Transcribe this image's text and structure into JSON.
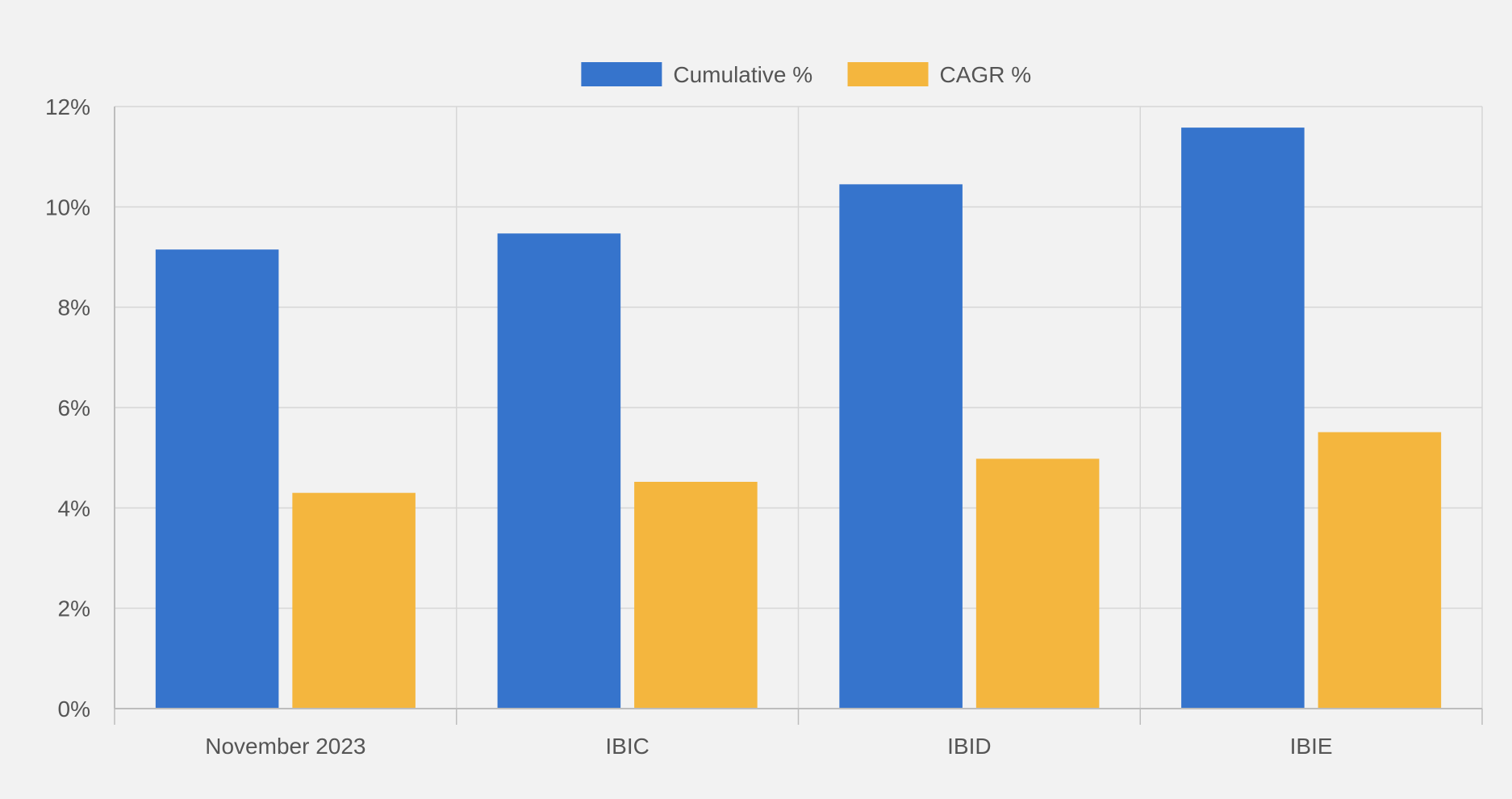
{
  "chart_data": {
    "type": "bar",
    "categories": [
      "November 2023",
      "IBIC",
      "IBID",
      "IBIE"
    ],
    "series": [
      {
        "name": "Cumulative %",
        "color": "#3674cc",
        "values": [
          9.15,
          9.47,
          10.45,
          11.58
        ]
      },
      {
        "name": "CAGR %",
        "color": "#f4b63e",
        "values": [
          4.3,
          4.52,
          4.98,
          5.51
        ]
      }
    ],
    "y_ticks": [
      "0%",
      "2%",
      "4%",
      "6%",
      "8%",
      "10%",
      "12%"
    ],
    "ylim": [
      0,
      12
    ],
    "y_tick_step": 2,
    "legend_position": "top-center",
    "grid": true,
    "colors": {
      "background": "#f2f2f2",
      "grid": "#d6d6d6",
      "axis": "#bdbdbd",
      "text": "#555555"
    }
  }
}
